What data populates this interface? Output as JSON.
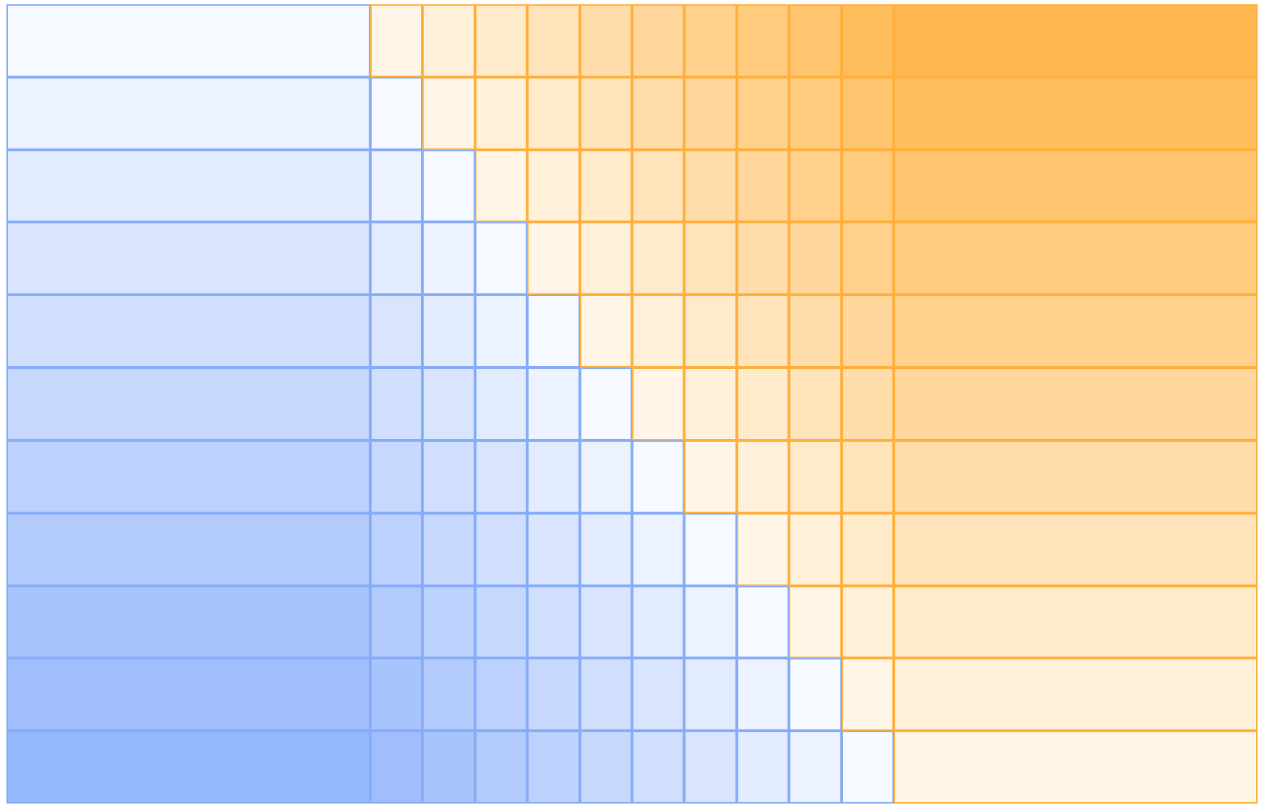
{
  "grid": {
    "rows": 11,
    "columns": 12
  },
  "colors": {
    "blue_light": "#f6f9ff",
    "blue_dark": "#95b7fb",
    "blue_border": "#86acf7",
    "orange_light": "#fff6e8",
    "orange_dark": "#ffb84f",
    "orange_border": "#ffaf3c"
  }
}
